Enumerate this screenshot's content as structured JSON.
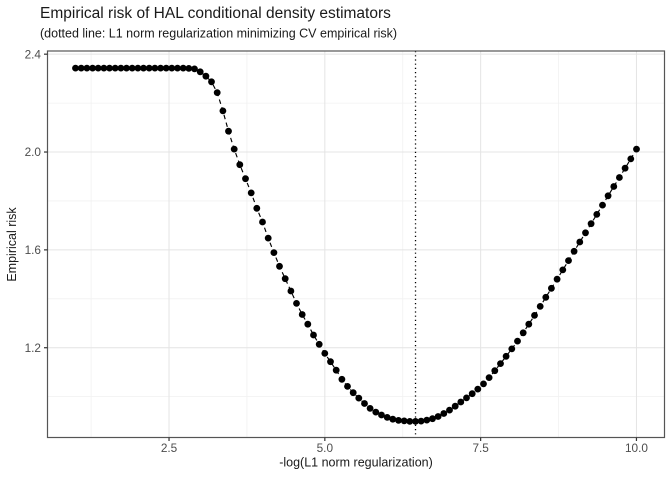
{
  "chart_data": {
    "type": "scatter",
    "title": "Empirical risk of HAL conditional density estimators",
    "subtitle": "(dotted line: L1 norm regularization minimizing CV empirical risk)",
    "xlabel": "-log(L1 norm regularization)",
    "ylabel": "Empirical risk",
    "xlim": [
      0.55,
      10.45
    ],
    "ylim": [
      0.833,
      2.413
    ],
    "x_major_ticks": [
      2.5,
      5.0,
      7.5,
      10.0
    ],
    "x_tick_labels": [
      "2.5",
      "5.0",
      "7.5",
      "10.0"
    ],
    "x_minor_ticks": [
      1.25,
      3.75,
      6.25,
      8.75
    ],
    "y_major_ticks": [
      1.2,
      1.6,
      2.0,
      2.4
    ],
    "y_tick_labels": [
      "1.2",
      "1.6",
      "2.0",
      "2.4"
    ],
    "y_minor_ticks": [
      1.0,
      1.4,
      1.8,
      2.2
    ],
    "vline_x": 6.455,
    "vline_style": "dotted",
    "line_style": "dashed",
    "legend": "none",
    "grid": "on",
    "x": [
      1.0,
      1.091,
      1.182,
      1.273,
      1.364,
      1.455,
      1.545,
      1.636,
      1.727,
      1.818,
      1.909,
      2.0,
      2.091,
      2.182,
      2.273,
      2.364,
      2.455,
      2.545,
      2.636,
      2.727,
      2.818,
      2.909,
      3.0,
      3.091,
      3.182,
      3.273,
      3.364,
      3.455,
      3.545,
      3.636,
      3.727,
      3.818,
      3.909,
      4.0,
      4.091,
      4.182,
      4.273,
      4.364,
      4.455,
      4.545,
      4.636,
      4.727,
      4.818,
      4.909,
      5.0,
      5.091,
      5.182,
      5.273,
      5.364,
      5.455,
      5.545,
      5.636,
      5.727,
      5.818,
      5.909,
      6.0,
      6.091,
      6.182,
      6.273,
      6.364,
      6.455,
      6.545,
      6.636,
      6.727,
      6.818,
      6.909,
      7.0,
      7.091,
      7.182,
      7.273,
      7.364,
      7.455,
      7.545,
      7.636,
      7.727,
      7.818,
      7.909,
      8.0,
      8.091,
      8.182,
      8.273,
      8.364,
      8.455,
      8.545,
      8.636,
      8.727,
      8.818,
      8.909,
      9.0,
      9.091,
      9.182,
      9.273,
      9.364,
      9.455,
      9.545,
      9.636,
      9.727,
      9.818,
      9.909,
      10.0
    ],
    "y": [
      2.343,
      2.343,
      2.343,
      2.343,
      2.343,
      2.343,
      2.343,
      2.343,
      2.343,
      2.343,
      2.343,
      2.343,
      2.343,
      2.343,
      2.343,
      2.343,
      2.343,
      2.343,
      2.343,
      2.343,
      2.342,
      2.34,
      2.328,
      2.31,
      2.287,
      2.243,
      2.168,
      2.085,
      2.012,
      1.948,
      1.891,
      1.833,
      1.77,
      1.714,
      1.648,
      1.589,
      1.533,
      1.482,
      1.432,
      1.381,
      1.336,
      1.296,
      1.252,
      1.214,
      1.177,
      1.143,
      1.108,
      1.071,
      1.042,
      1.016,
      0.994,
      0.972,
      0.952,
      0.937,
      0.925,
      0.915,
      0.908,
      0.903,
      0.901,
      0.899,
      0.899,
      0.9,
      0.904,
      0.91,
      0.919,
      0.931,
      0.945,
      0.961,
      0.978,
      0.995,
      1.012,
      1.031,
      1.052,
      1.078,
      1.106,
      1.135,
      1.165,
      1.195,
      1.227,
      1.261,
      1.296,
      1.332,
      1.369,
      1.406,
      1.443,
      1.48,
      1.518,
      1.556,
      1.594,
      1.632,
      1.67,
      1.707,
      1.745,
      1.783,
      1.821,
      1.859,
      1.896,
      1.934,
      1.972,
      2.012
    ]
  },
  "colors": {
    "background": "#ffffff",
    "panel_background": "#ffffff",
    "grid_major": "#e4e4e4",
    "grid_minor": "#f1f1f1",
    "panel_border": "#555555",
    "tick_mark": "#333333",
    "tick_label": "#4d4d4d",
    "title_text": "#1a1a1a",
    "axis_title_text": "#1a1a1a",
    "point": "#000000",
    "line": "#000000",
    "vline": "#000000"
  }
}
